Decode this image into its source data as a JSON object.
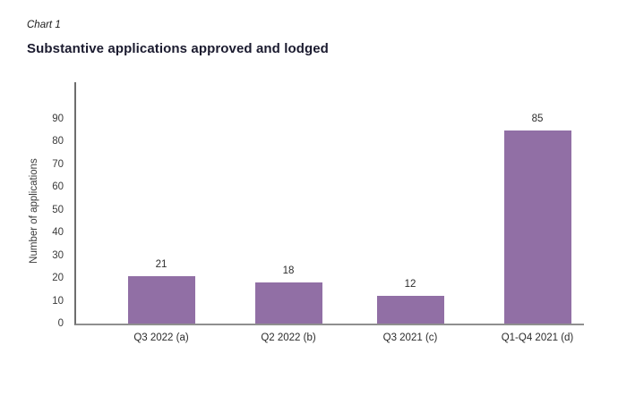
{
  "page": {
    "chart_label": "Chart 1",
    "title": "Substantive applications approved and lodged"
  },
  "chart_data": {
    "type": "bar",
    "title": "Substantive applications approved and lodged",
    "subtitle_label": "Chart 1",
    "categories": [
      "Q3 2022 (a)",
      "Q2 2022 (b)",
      "Q3 2021 (c)",
      "Q1-Q4 2021 (d)"
    ],
    "values": [
      21,
      18,
      12,
      85
    ],
    "value_labels": [
      "21",
      "18",
      "12",
      "85"
    ],
    "xlabel": "",
    "ylabel": "Number of applications",
    "ylim": [
      0,
      90
    ],
    "ytick_step": 10,
    "yticks": [
      0,
      10,
      20,
      30,
      40,
      50,
      60,
      70,
      80,
      90
    ],
    "grid": false,
    "legend": "none",
    "bar_color": "#916FA5",
    "axis_color": "#6d6d6d",
    "baseline_color": "#8f8f8f",
    "text_color": "#2b2b2b"
  }
}
